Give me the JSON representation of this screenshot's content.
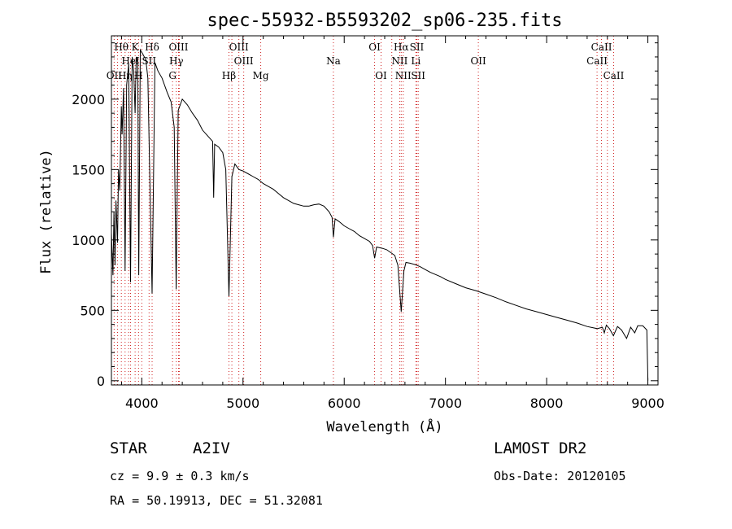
{
  "chart_data": {
    "type": "line",
    "title": "spec-55932-B5593202_sp06-235.fits",
    "xlabel": "Wavelength (Å)",
    "ylabel": "Flux (relative)",
    "xlim": [
      3700,
      9100
    ],
    "ylim": [
      -30,
      2450
    ],
    "x_ticks": [
      4000,
      5000,
      6000,
      7000,
      8000,
      9000
    ],
    "y_ticks": [
      0,
      500,
      1000,
      1500,
      2000
    ],
    "series": [
      {
        "name": "flux",
        "points": [
          [
            3700,
            1050
          ],
          [
            3715,
            750
          ],
          [
            3725,
            1200
          ],
          [
            3735,
            820
          ],
          [
            3745,
            1280
          ],
          [
            3760,
            980
          ],
          [
            3770,
            1500
          ],
          [
            3782,
            1350
          ],
          [
            3798,
            1950
          ],
          [
            3805,
            1750
          ],
          [
            3820,
            2080
          ],
          [
            3835,
            780
          ],
          [
            3850,
            2100
          ],
          [
            3870,
            2250
          ],
          [
            3889,
            700
          ],
          [
            3905,
            2300
          ],
          [
            3920,
            2200
          ],
          [
            3934,
            1900
          ],
          [
            3945,
            2300
          ],
          [
            3960,
            2250
          ],
          [
            3970,
            750
          ],
          [
            3985,
            2350
          ],
          [
            4010,
            2320
          ],
          [
            4040,
            2280
          ],
          [
            4060,
            2150
          ],
          [
            4102,
            620
          ],
          [
            4130,
            2260
          ],
          [
            4160,
            2200
          ],
          [
            4200,
            2150
          ],
          [
            4250,
            2050
          ],
          [
            4290,
            1980
          ],
          [
            4320,
            1800
          ],
          [
            4340,
            650
          ],
          [
            4360,
            1920
          ],
          [
            4400,
            2000
          ],
          [
            4450,
            1960
          ],
          [
            4500,
            1900
          ],
          [
            4550,
            1850
          ],
          [
            4600,
            1780
          ],
          [
            4650,
            1740
          ],
          [
            4700,
            1700
          ],
          [
            4710,
            1300
          ],
          [
            4720,
            1680
          ],
          [
            4760,
            1660
          ],
          [
            4800,
            1620
          ],
          [
            4830,
            1500
          ],
          [
            4861,
            600
          ],
          [
            4890,
            1450
          ],
          [
            4920,
            1540
          ],
          [
            4960,
            1500
          ],
          [
            5000,
            1490
          ],
          [
            5050,
            1470
          ],
          [
            5100,
            1450
          ],
          [
            5150,
            1430
          ],
          [
            5200,
            1400
          ],
          [
            5250,
            1380
          ],
          [
            5300,
            1360
          ],
          [
            5350,
            1330
          ],
          [
            5400,
            1300
          ],
          [
            5450,
            1280
          ],
          [
            5500,
            1260
          ],
          [
            5550,
            1250
          ],
          [
            5600,
            1240
          ],
          [
            5650,
            1240
          ],
          [
            5700,
            1250
          ],
          [
            5750,
            1255
          ],
          [
            5800,
            1240
          ],
          [
            5850,
            1200
          ],
          [
            5880,
            1160
          ],
          [
            5893,
            1020
          ],
          [
            5910,
            1150
          ],
          [
            5950,
            1130
          ],
          [
            6000,
            1100
          ],
          [
            6050,
            1080
          ],
          [
            6100,
            1060
          ],
          [
            6150,
            1030
          ],
          [
            6200,
            1010
          ],
          [
            6250,
            990
          ],
          [
            6280,
            960
          ],
          [
            6300,
            870
          ],
          [
            6320,
            950
          ],
          [
            6380,
            940
          ],
          [
            6420,
            930
          ],
          [
            6460,
            910
          ],
          [
            6500,
            890
          ],
          [
            6530,
            820
          ],
          [
            6563,
            490
          ],
          [
            6590,
            780
          ],
          [
            6610,
            840
          ],
          [
            6650,
            835
          ],
          [
            6700,
            825
          ],
          [
            6750,
            810
          ],
          [
            6800,
            790
          ],
          [
            6850,
            770
          ],
          [
            6900,
            755
          ],
          [
            6950,
            740
          ],
          [
            7000,
            720
          ],
          [
            7100,
            690
          ],
          [
            7200,
            660
          ],
          [
            7300,
            640
          ],
          [
            7400,
            615
          ],
          [
            7500,
            590
          ],
          [
            7600,
            560
          ],
          [
            7700,
            535
          ],
          [
            7800,
            510
          ],
          [
            7900,
            490
          ],
          [
            8000,
            470
          ],
          [
            8100,
            450
          ],
          [
            8200,
            430
          ],
          [
            8300,
            410
          ],
          [
            8400,
            385
          ],
          [
            8500,
            370
          ],
          [
            8550,
            380
          ],
          [
            8570,
            340
          ],
          [
            8590,
            395
          ],
          [
            8620,
            370
          ],
          [
            8660,
            320
          ],
          [
            8700,
            385
          ],
          [
            8740,
            360
          ],
          [
            8790,
            300
          ],
          [
            8830,
            380
          ],
          [
            8870,
            340
          ],
          [
            8900,
            390
          ],
          [
            8950,
            390
          ],
          [
            8990,
            360
          ],
          [
            9000,
            0
          ]
        ]
      }
    ],
    "lines_top": [
      {
        "label": "Hθ",
        "wavelength": 3798
      },
      {
        "label": "K",
        "wavelength": 3934
      },
      {
        "label": "Hδ",
        "wavelength": 4102
      },
      {
        "label": "OIII",
        "wavelength": 4363
      },
      {
        "label": "OIII",
        "wavelength": 4959
      },
      {
        "label": "OI",
        "wavelength": 6300
      },
      {
        "label": "Hα",
        "wavelength": 6563
      },
      {
        "label": "SII",
        "wavelength": 6717
      },
      {
        "label": "CaII",
        "wavelength": 8542
      }
    ],
    "lines_mid": [
      {
        "label": "HeI",
        "wavelength": 3889
      },
      {
        "label": "SII",
        "wavelength": 4072
      },
      {
        "label": "Hγ",
        "wavelength": 4341
      },
      {
        "label": "OIII",
        "wavelength": 5007
      },
      {
        "label": "Na",
        "wavelength": 5893
      },
      {
        "label": "NII",
        "wavelength": 6548
      },
      {
        "label": "Li",
        "wavelength": 6708
      },
      {
        "label": "OII",
        "wavelength": 7325
      },
      {
        "label": "CaII",
        "wavelength": 8498
      }
    ],
    "lines_low": [
      {
        "label": "OII",
        "wavelength": 3727
      },
      {
        "label": "Hη",
        "wavelength": 3835
      },
      {
        "label": "H",
        "wavelength": 3968
      },
      {
        "label": "G",
        "wavelength": 4304
      },
      {
        "label": "Hβ",
        "wavelength": 4861
      },
      {
        "label": "Mg",
        "wavelength": 5175
      },
      {
        "label": "OI",
        "wavelength": 6364
      },
      {
        "label": "NII",
        "wavelength": 6583
      },
      {
        "label": "SII",
        "wavelength": 6731
      },
      {
        "label": "CaII",
        "wavelength": 8662
      }
    ],
    "extra_marker_lines": [
      3760,
      3870,
      4000,
      4370,
      4890,
      6470,
      8600
    ]
  },
  "info": {
    "object_type": "STAR",
    "subclass": "A2IV",
    "survey": "LAMOST DR2",
    "cz": "cz = 9.9 ± 0.3 km/s",
    "obs_date": "Obs-Date: 20120105",
    "coords": "RA =  50.19913, DEC =  51.32081"
  },
  "colors": {
    "line_marker": "#d02020",
    "spectrum": "#000000"
  }
}
